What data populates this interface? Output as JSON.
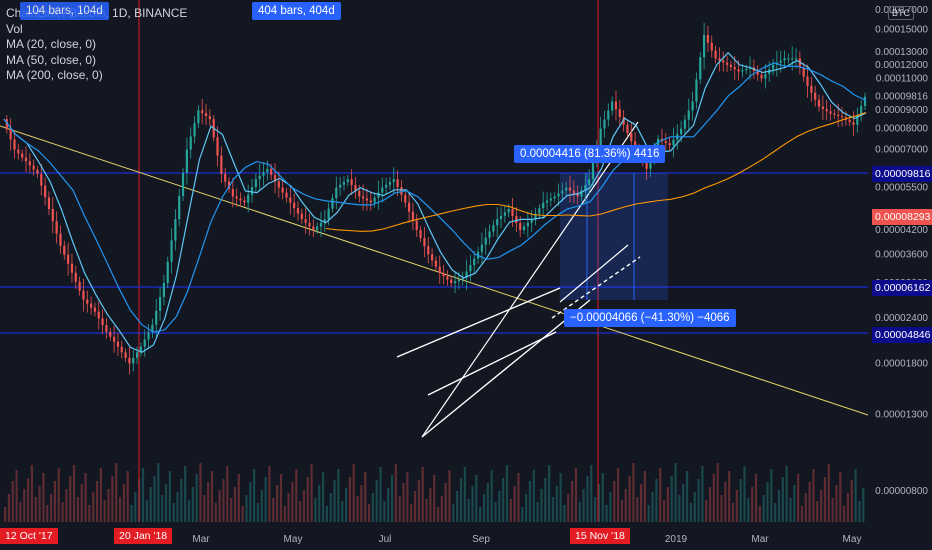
{
  "legend": {
    "title": "ChainLink / Bitcoin, 1D, BINANCE",
    "vol": "Vol",
    "ma20": "MA (20, close, 0)",
    "ma50": "MA (50, close, 0)",
    "ma200": "MA (200, close, 0)"
  },
  "badges": {
    "bars_left": "104 bars, 104d",
    "bars_right": "404 bars, 404d",
    "measure_up": "0.00004416 (81.36%) 4416",
    "measure_down": "−0.00004066 (−41.30%) −4066"
  },
  "currency": "BTC",
  "price_tags": {
    "upper": "0.00009816",
    "current": "0.00008293",
    "mid": "0.00006162",
    "lower": "0.00004846"
  },
  "date_tags": {
    "start": "12 Oct '17",
    "jan": "20 Jan '18",
    "nov": "15 Nov '18"
  },
  "chart_data": {
    "type": "line",
    "symbol": "ChainLink / Bitcoin",
    "interval": "1D",
    "exchange": "BINANCE",
    "y_scale": "log",
    "y_ticks": [
      "0.00017000",
      "0.00015000",
      "0.00013000",
      "0.00012000",
      "0.00011000",
      "0.00009816",
      "0.00009000",
      "0.00008000",
      "0.00007000",
      "0.00006000",
      "0.00005500",
      "0.00004200",
      "0.00003600",
      "0.00003000",
      "0.00002400",
      "0.00001800",
      "0.00001300",
      "0.00000800"
    ],
    "x_ticks": [
      "Mar",
      "May",
      "Jul",
      "Sep",
      "2019",
      "Mar",
      "May"
    ],
    "price_line_color": "#d1d4dc",
    "ma20_color": "#5ec8f6",
    "ma50_color": "#2196f3",
    "ma200_color": "#ff9800",
    "series": [
      {
        "name": "close",
        "values": [
          8.5e-05,
          7e-05,
          6.5e-05,
          6e-05,
          4.8e-05,
          3.8e-05,
          3.2e-05,
          2.7e-05,
          2.5e-05,
          2.2e-05,
          2e-05,
          1.8e-05,
          2e-05,
          2.3e-05,
          3e-05,
          4.5e-05,
          7e-05,
          9e-05,
          8.5e-05,
          6e-05,
          5.2e-05,
          5e-05,
          5.8e-05,
          6.2e-05,
          5.5e-05,
          5e-05,
          4.5e-05,
          4.2e-05,
          4.5e-05,
          5.5e-05,
          5.8e-05,
          5.2e-05,
          5e-05,
          5.5e-05,
          5.8e-05,
          5e-05,
          4.2e-05,
          3.6e-05,
          3.2e-05,
          3e-05,
          3.1e-05,
          3.5e-05,
          4e-05,
          4.5e-05,
          4.8e-05,
          4.2e-05,
          4.5e-05,
          5e-05,
          5.2e-05,
          5.5e-05,
          5.2e-05,
          5.8e-05,
          8e-05,
          9.5e-05,
          8.2e-05,
          7e-05,
          6.2e-05,
          7.5e-05,
          7.2e-05,
          8e-05,
          9.5e-05,
          0.000145,
          0.000125,
          0.00012,
          0.000115,
          0.000118,
          0.00011,
          0.00012,
          0.000125,
          0.000125,
          0.000105,
          9.2e-05,
          8.8e-05,
          8.6e-05,
          8.2e-05,
          9.8e-05
        ]
      },
      {
        "name": "MA (20, close, 0)",
        "values": []
      },
      {
        "name": "MA (50, close, 0)",
        "values": []
      },
      {
        "name": "MA (200, close, 0)",
        "values": []
      }
    ]
  }
}
